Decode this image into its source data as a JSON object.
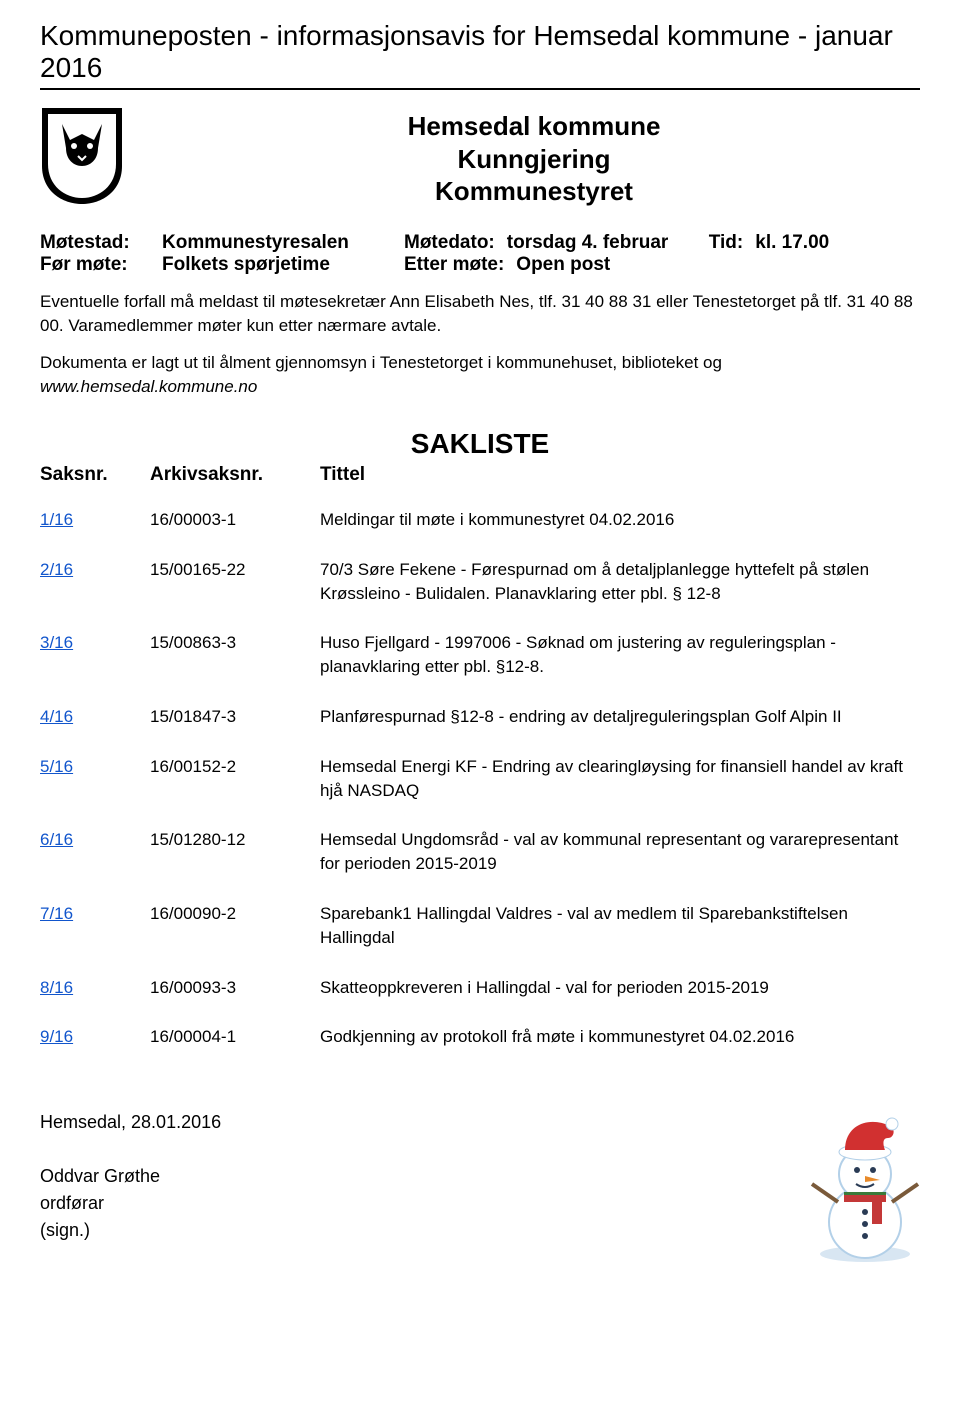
{
  "masthead": "Kommuneposten - informasjonsavis for Hemsedal kommune - januar 2016",
  "title": {
    "line1": "Hemsedal kommune",
    "line2": "Kunngjering",
    "line3": "Kommunestyret"
  },
  "meeting": {
    "place_label": "Møtestad:",
    "place_value": "Kommunestyresalen",
    "date_label": "Møtedato:",
    "date_value": "torsdag 4. februar",
    "time_label": "Tid:",
    "time_value": "kl. 17.00",
    "before_label": "Før møte:",
    "before_value": "Folkets spørjetime",
    "after_label": "Etter møte:",
    "after_value": "Open post"
  },
  "para1": "Eventuelle forfall må meldast til møtesekretær Ann Elisabeth Nes, tlf. 31 40 88 31 eller Tenestetorget på tlf. 31 40 88 00. Varamedlemmer møter kun etter nærmare avtale.",
  "para2a": "Dokumenta er lagt ut til ålment gjennomsyn i Tenestetorget i kommunehuset, biblioteket og ",
  "para2b": "www.hemsedal.kommune.no",
  "sakliste_heading": "SAKLISTE",
  "cols": {
    "c1": "Saksnr.",
    "c2": "Arkivsaksnr.",
    "c3": "Tittel"
  },
  "rows": [
    {
      "saksnr": "1/16",
      "arkiv": "16/00003-1",
      "tittel": "Meldingar til møte i kommunestyret 04.02.2016"
    },
    {
      "saksnr": "2/16",
      "arkiv": "15/00165-22",
      "tittel": "70/3 Søre Fekene - Førespurnad om å detaljplanlegge hyttefelt på stølen Krøssleino - Bulidalen. Planavklaring etter pbl. § 12-8"
    },
    {
      "saksnr": "3/16",
      "arkiv": "15/00863-3",
      "tittel": "Huso Fjellgard - 1997006 - Søknad om justering av reguleringsplan - planavklaring etter pbl. §12-8."
    },
    {
      "saksnr": "4/16",
      "arkiv": "15/01847-3",
      "tittel": "Planførespurnad §12-8 - endring av detaljreguleringsplan Golf Alpin II"
    },
    {
      "saksnr": "5/16",
      "arkiv": "16/00152-2",
      "tittel": "Hemsedal Energi KF - Endring av clearingløysing for finansiell handel av kraft hjå NASDAQ"
    },
    {
      "saksnr": "6/16",
      "arkiv": "15/01280-12",
      "tittel": "Hemsedal Ungdomsråd - val av kommunal representant og vararepresentant for perioden 2015-2019"
    },
    {
      "saksnr": "7/16",
      "arkiv": "16/00090-2",
      "tittel": "Sparebank1 Hallingdal Valdres - val av medlem til Sparebankstiftelsen Hallingdal"
    },
    {
      "saksnr": "8/16",
      "arkiv": "16/00093-3",
      "tittel": "Skatteoppkreveren i Hallingdal - val for perioden 2015-2019"
    },
    {
      "saksnr": "9/16",
      "arkiv": "16/00004-1",
      "tittel": "Godkjenning av protokoll frå møte i kommunestyret 04.02.2016"
    }
  ],
  "footer": {
    "place_date": "Hemsedal, 28.01.2016",
    "name": "Oddvar Grøthe",
    "role": "ordførar",
    "sign": "(sign.)"
  },
  "colors": {
    "link": "#1155cc",
    "text": "#000000",
    "rule": "#000000",
    "snowman_body": "#ffffff",
    "snowman_outline": "#b3d0e8",
    "hat_red": "#d13030",
    "hat_trim": "#ffffff",
    "scarf_red": "#c43838",
    "scarf_green": "#3a7a3a",
    "carrot": "#e88a2a",
    "arm": "#7a5a3a"
  }
}
